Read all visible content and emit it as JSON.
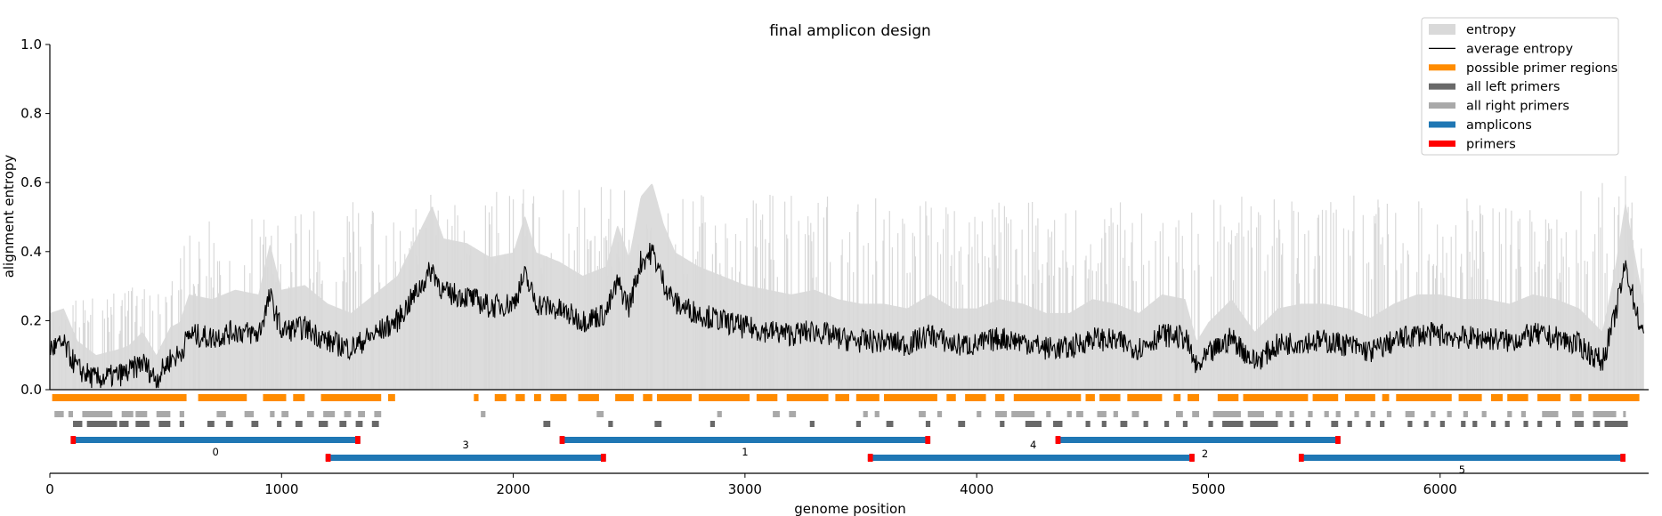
{
  "chart_data": {
    "type": "area",
    "title": "final amplicon design",
    "xlabel": "genome position",
    "ylabel": "alignment entropy",
    "xlim": [
      0,
      6900
    ],
    "ylim": [
      0,
      1.0
    ],
    "x_ticks": [
      0,
      1000,
      2000,
      3000,
      4000,
      5000,
      6000
    ],
    "y_ticks": [
      0.0,
      0.2,
      0.4,
      0.6,
      0.8,
      1.0
    ],
    "legend_position": "top-right",
    "legend": [
      {
        "label": "entropy",
        "color": "#d9d9d9",
        "style": "patch"
      },
      {
        "label": "average entropy",
        "color": "#000000",
        "style": "line"
      },
      {
        "label": "possible primer regions",
        "color": "#ff8c00",
        "style": "bar"
      },
      {
        "label": "all left primers",
        "color": "#696969",
        "style": "bar"
      },
      {
        "label": "all right primers",
        "color": "#a9a9a9",
        "style": "bar"
      },
      {
        "label": "amplicons",
        "color": "#1f77b4",
        "style": "bar"
      },
      {
        "label": "primers",
        "color": "#ff0000",
        "style": "bar"
      }
    ],
    "average_entropy_profile": [
      [
        0,
        0.12
      ],
      [
        60,
        0.13
      ],
      [
        120,
        0.06
      ],
      [
        200,
        0.03
      ],
      [
        280,
        0.04
      ],
      [
        340,
        0.05
      ],
      [
        400,
        0.08
      ],
      [
        460,
        0.03
      ],
      [
        520,
        0.09
      ],
      [
        560,
        0.1
      ],
      [
        600,
        0.16
      ],
      [
        700,
        0.15
      ],
      [
        800,
        0.17
      ],
      [
        900,
        0.16
      ],
      [
        950,
        0.27
      ],
      [
        1000,
        0.17
      ],
      [
        1100,
        0.18
      ],
      [
        1200,
        0.14
      ],
      [
        1300,
        0.12
      ],
      [
        1400,
        0.16
      ],
      [
        1500,
        0.2
      ],
      [
        1600,
        0.3
      ],
      [
        1650,
        0.35
      ],
      [
        1700,
        0.28
      ],
      [
        1800,
        0.27
      ],
      [
        1900,
        0.24
      ],
      [
        2000,
        0.25
      ],
      [
        2050,
        0.33
      ],
      [
        2100,
        0.25
      ],
      [
        2200,
        0.23
      ],
      [
        2300,
        0.2
      ],
      [
        2400,
        0.22
      ],
      [
        2450,
        0.31
      ],
      [
        2500,
        0.24
      ],
      [
        2550,
        0.37
      ],
      [
        2600,
        0.4
      ],
      [
        2650,
        0.31
      ],
      [
        2700,
        0.25
      ],
      [
        2800,
        0.22
      ],
      [
        2900,
        0.2
      ],
      [
        3000,
        0.18
      ],
      [
        3100,
        0.17
      ],
      [
        3200,
        0.16
      ],
      [
        3300,
        0.17
      ],
      [
        3400,
        0.15
      ],
      [
        3500,
        0.14
      ],
      [
        3600,
        0.14
      ],
      [
        3700,
        0.13
      ],
      [
        3800,
        0.16
      ],
      [
        3900,
        0.13
      ],
      [
        4000,
        0.13
      ],
      [
        4100,
        0.15
      ],
      [
        4200,
        0.14
      ],
      [
        4300,
        0.12
      ],
      [
        4400,
        0.12
      ],
      [
        4500,
        0.15
      ],
      [
        4600,
        0.14
      ],
      [
        4700,
        0.12
      ],
      [
        4800,
        0.16
      ],
      [
        4900,
        0.15
      ],
      [
        4950,
        0.06
      ],
      [
        5000,
        0.1
      ],
      [
        5100,
        0.15
      ],
      [
        5200,
        0.08
      ],
      [
        5300,
        0.13
      ],
      [
        5400,
        0.14
      ],
      [
        5500,
        0.14
      ],
      [
        5600,
        0.13
      ],
      [
        5700,
        0.11
      ],
      [
        5800,
        0.14
      ],
      [
        5900,
        0.16
      ],
      [
        6000,
        0.16
      ],
      [
        6100,
        0.15
      ],
      [
        6200,
        0.15
      ],
      [
        6300,
        0.14
      ],
      [
        6400,
        0.16
      ],
      [
        6500,
        0.15
      ],
      [
        6600,
        0.13
      ],
      [
        6700,
        0.08
      ],
      [
        6750,
        0.2
      ],
      [
        6800,
        0.36
      ],
      [
        6850,
        0.22
      ],
      [
        6880,
        0.14
      ]
    ],
    "entropy_envelope": [
      [
        0,
        0.25
      ],
      [
        500,
        0.32
      ],
      [
        600,
        0.5
      ],
      [
        1000,
        0.52
      ],
      [
        1500,
        0.56
      ],
      [
        2000,
        0.58
      ],
      [
        2500,
        0.6
      ],
      [
        3000,
        0.58
      ],
      [
        3500,
        0.56
      ],
      [
        4000,
        0.55
      ],
      [
        4500,
        0.55
      ],
      [
        5000,
        0.56
      ],
      [
        5500,
        0.56
      ],
      [
        6000,
        0.58
      ],
      [
        6500,
        0.56
      ],
      [
        6800,
        0.62
      ],
      [
        6880,
        0.4
      ]
    ],
    "possible_primer_regions": [
      [
        10,
        590
      ],
      [
        640,
        850
      ],
      [
        920,
        1020
      ],
      [
        1050,
        1100
      ],
      [
        1170,
        1430
      ],
      [
        1460,
        1490
      ],
      [
        1830,
        1850
      ],
      [
        1920,
        1970
      ],
      [
        2010,
        2050
      ],
      [
        2090,
        2120
      ],
      [
        2160,
        2230
      ],
      [
        2280,
        2370
      ],
      [
        2440,
        2520
      ],
      [
        2560,
        2600
      ],
      [
        2620,
        2770
      ],
      [
        2800,
        3020
      ],
      [
        3050,
        3140
      ],
      [
        3180,
        3360
      ],
      [
        3390,
        3450
      ],
      [
        3480,
        3580
      ],
      [
        3600,
        3830
      ],
      [
        3870,
        3910
      ],
      [
        3950,
        4040
      ],
      [
        4080,
        4120
      ],
      [
        4160,
        4450
      ],
      [
        4470,
        4510
      ],
      [
        4530,
        4620
      ],
      [
        4650,
        4800
      ],
      [
        4850,
        4880
      ],
      [
        4910,
        4960
      ],
      [
        5040,
        5130
      ],
      [
        5150,
        5430
      ],
      [
        5450,
        5560
      ],
      [
        5590,
        5720
      ],
      [
        5750,
        5780
      ],
      [
        5810,
        6050
      ],
      [
        6080,
        6180
      ],
      [
        6220,
        6270
      ],
      [
        6290,
        6380
      ],
      [
        6420,
        6520
      ],
      [
        6560,
        6610
      ],
      [
        6640,
        6860
      ]
    ],
    "all_right_primers": [
      [
        20,
        60
      ],
      [
        80,
        100
      ],
      [
        140,
        270
      ],
      [
        310,
        360
      ],
      [
        370,
        420
      ],
      [
        460,
        520
      ],
      [
        560,
        580
      ],
      [
        720,
        760
      ],
      [
        840,
        880
      ],
      [
        950,
        970
      ],
      [
        1000,
        1030
      ],
      [
        1110,
        1140
      ],
      [
        1180,
        1230
      ],
      [
        1270,
        1300
      ],
      [
        1330,
        1360
      ],
      [
        1400,
        1430
      ],
      [
        1860,
        1880
      ],
      [
        2360,
        2390
      ],
      [
        2880,
        2900
      ],
      [
        3120,
        3150
      ],
      [
        3190,
        3220
      ],
      [
        3510,
        3530
      ],
      [
        3560,
        3580
      ],
      [
        3750,
        3780
      ],
      [
        3830,
        3850
      ],
      [
        4000,
        4020
      ],
      [
        4080,
        4130
      ],
      [
        4150,
        4250
      ],
      [
        4300,
        4320
      ],
      [
        4390,
        4410
      ],
      [
        4430,
        4460
      ],
      [
        4520,
        4560
      ],
      [
        4590,
        4610
      ],
      [
        4670,
        4700
      ],
      [
        4860,
        4890
      ],
      [
        4930,
        4960
      ],
      [
        5020,
        5140
      ],
      [
        5170,
        5240
      ],
      [
        5290,
        5320
      ],
      [
        5350,
        5370
      ],
      [
        5430,
        5450
      ],
      [
        5500,
        5520
      ],
      [
        5550,
        5570
      ],
      [
        5630,
        5650
      ],
      [
        5700,
        5720
      ],
      [
        5770,
        5790
      ],
      [
        5850,
        5890
      ],
      [
        5960,
        5980
      ],
      [
        6030,
        6050
      ],
      [
        6100,
        6120
      ],
      [
        6180,
        6200
      ],
      [
        6290,
        6310
      ],
      [
        6350,
        6370
      ],
      [
        6440,
        6510
      ],
      [
        6570,
        6620
      ],
      [
        6660,
        6760
      ],
      [
        6790,
        6800
      ]
    ],
    "all_left_primers": [
      [
        100,
        140
      ],
      [
        160,
        290
      ],
      [
        300,
        340
      ],
      [
        370,
        430
      ],
      [
        470,
        520
      ],
      [
        560,
        580
      ],
      [
        680,
        710
      ],
      [
        760,
        790
      ],
      [
        870,
        900
      ],
      [
        980,
        1000
      ],
      [
        1060,
        1090
      ],
      [
        1160,
        1200
      ],
      [
        1250,
        1280
      ],
      [
        1320,
        1350
      ],
      [
        1390,
        1420
      ],
      [
        2130,
        2160
      ],
      [
        2410,
        2430
      ],
      [
        2610,
        2640
      ],
      [
        2850,
        2870
      ],
      [
        3280,
        3300
      ],
      [
        3480,
        3500
      ],
      [
        3610,
        3640
      ],
      [
        3780,
        3800
      ],
      [
        3920,
        3950
      ],
      [
        4100,
        4120
      ],
      [
        4210,
        4280
      ],
      [
        4330,
        4370
      ],
      [
        4470,
        4490
      ],
      [
        4540,
        4560
      ],
      [
        4620,
        4650
      ],
      [
        4720,
        4740
      ],
      [
        4810,
        4830
      ],
      [
        4890,
        4910
      ],
      [
        5000,
        5020
      ],
      [
        5060,
        5150
      ],
      [
        5180,
        5300
      ],
      [
        5350,
        5370
      ],
      [
        5420,
        5440
      ],
      [
        5530,
        5560
      ],
      [
        5600,
        5620
      ],
      [
        5680,
        5700
      ],
      [
        5740,
        5760
      ],
      [
        5860,
        5880
      ],
      [
        5930,
        5950
      ],
      [
        6000,
        6020
      ],
      [
        6090,
        6110
      ],
      [
        6140,
        6160
      ],
      [
        6220,
        6240
      ],
      [
        6280,
        6300
      ],
      [
        6360,
        6380
      ],
      [
        6420,
        6440
      ],
      [
        6500,
        6520
      ],
      [
        6580,
        6620
      ],
      [
        6660,
        6690
      ],
      [
        6710,
        6810
      ]
    ],
    "amplicons": [
      {
        "label": "0",
        "start": 90,
        "end": 1340,
        "row": 0
      },
      {
        "label": "1",
        "start": 2200,
        "end": 3800,
        "row": 0
      },
      {
        "label": "4",
        "start": 4340,
        "end": 5570,
        "row": 0
      },
      {
        "label": "3",
        "start": 1190,
        "end": 2400,
        "row": 1
      },
      {
        "label": "2",
        "start": 3530,
        "end": 4940,
        "row": 1
      },
      {
        "label": "5",
        "start": 5390,
        "end": 6800,
        "row": 1
      }
    ],
    "primer_width": 22
  }
}
